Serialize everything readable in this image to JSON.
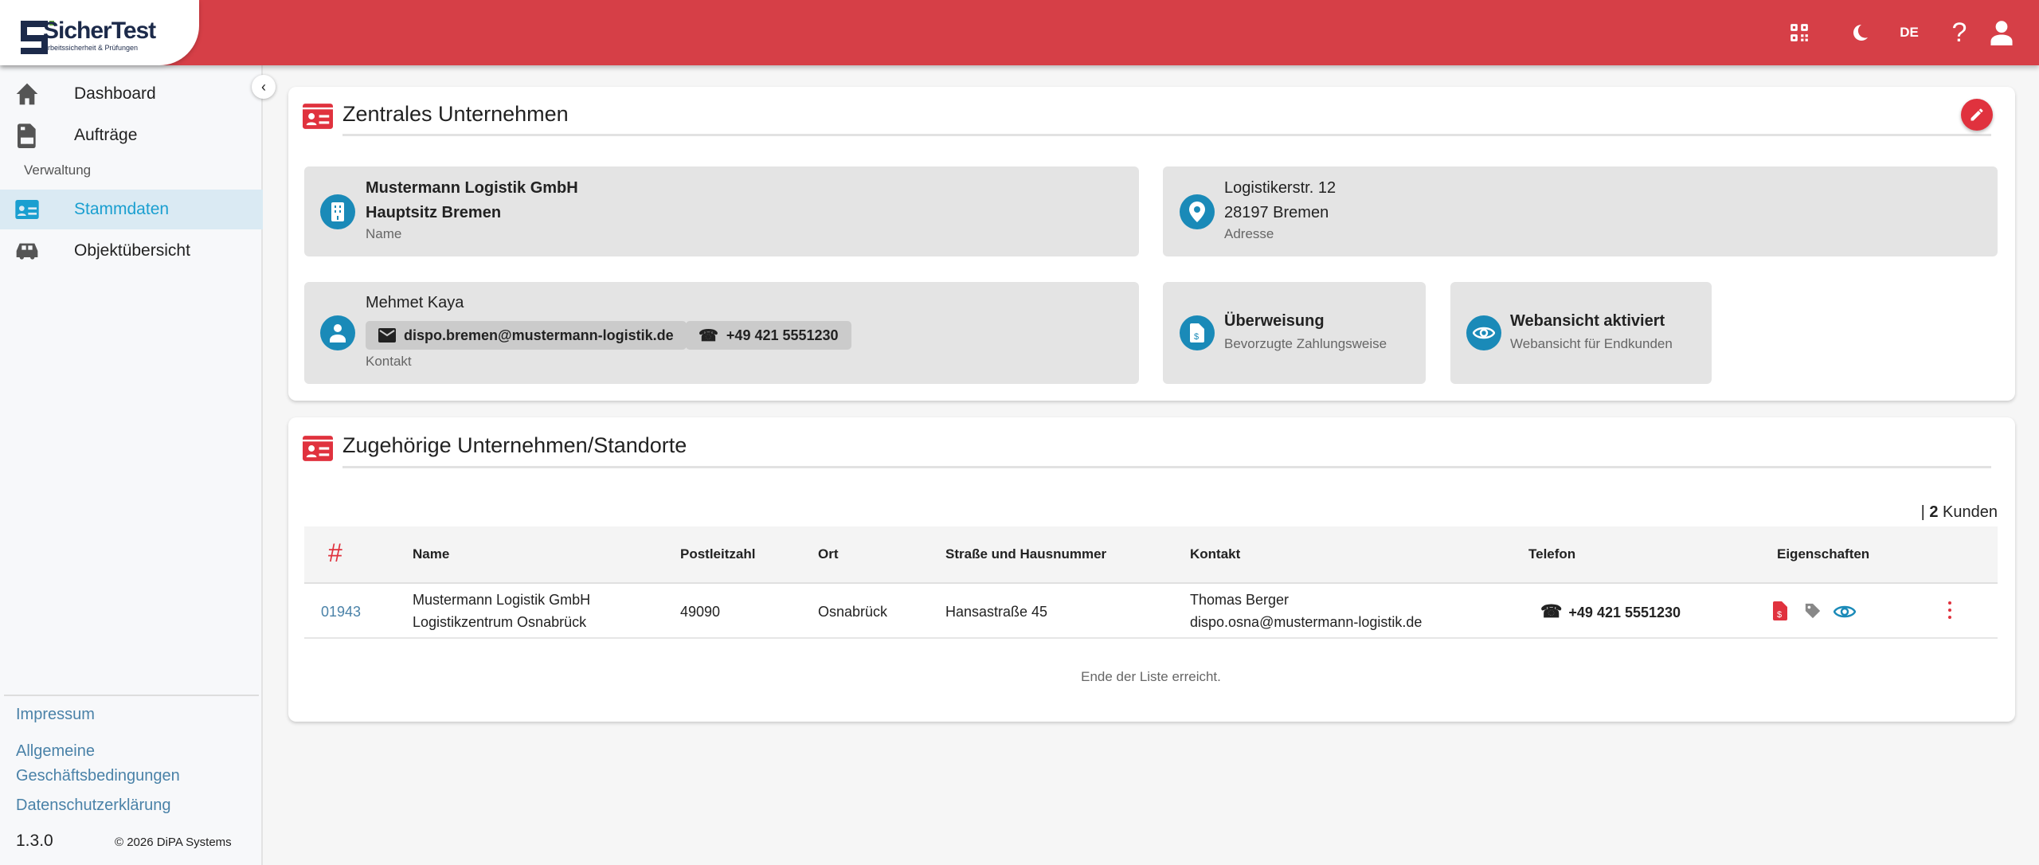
{
  "brand": {
    "name": "SicherTest",
    "tagline": "Arbeitssicherheit & Prüfungen"
  },
  "header": {
    "language": "DE",
    "icons": [
      "qr-code-icon",
      "moon-icon",
      "help-icon",
      "user-icon"
    ]
  },
  "sidebar": {
    "items": [
      {
        "label": "Dashboard",
        "icon": "home-icon"
      },
      {
        "label": "Aufträge",
        "icon": "document-icon"
      }
    ],
    "section": "Verwaltung",
    "admin_items": [
      {
        "label": "Stammdaten",
        "icon": "id-card-icon",
        "active": true
      },
      {
        "label": "Objektübersicht",
        "icon": "car-icon"
      }
    ],
    "footer_links": [
      "Impressum",
      "Allgemeine Geschäftsbedingungen",
      "Datenschutzerklärung"
    ],
    "version": "1.3.0",
    "copyright": "© 2026  DiPA Systems"
  },
  "colors": {
    "header": "#d63f47",
    "accent": "#1a8ab8",
    "link": "#4a82a8"
  },
  "company": {
    "title": "Zentrales Unternehmen",
    "name_line1": "Mustermann Logistik GmbH",
    "name_line2": "Hauptsitz Bremen",
    "name_label": "Name",
    "street": "Logistikerstr. 12",
    "city": "28197 Bremen",
    "address_label": "Adresse",
    "contact_name": "Mehmet Kaya",
    "contact_email": "dispo.bremen@mustermann-logistik.de",
    "contact_phone": "+49 421 5551230",
    "contact_label": "Kontakt",
    "payment": "Überweisung",
    "payment_label": "Bevorzugte Zahlungsweise",
    "webview": "Webansicht aktiviert",
    "webview_label": "Webansicht für Endkunden"
  },
  "related": {
    "title": "Zugehörige Unternehmen/Standorte",
    "count_prefix": "| ",
    "count": "2",
    "count_suffix": " Kunden",
    "columns": [
      "#",
      "Name",
      "Postleitzahl",
      "Ort",
      "Straße und Hausnummer",
      "Kontakt",
      "Telefon",
      "Eigenschaften"
    ],
    "rows": [
      {
        "id": "01943",
        "name1": "Mustermann Logistik GmbH",
        "name2": "Logistikzentrum Osnabrück",
        "zip": "49090",
        "city": "Osnabrück",
        "street": "Hansastraße 45",
        "contact_name": "Thomas Berger",
        "contact_email": "dispo.osna@mustermann-logistik.de",
        "phone": "+49 421 5551230",
        "properties": [
          "invoice-icon",
          "tag-icon",
          "eye-icon"
        ]
      }
    ],
    "end_text": "Ende der Liste erreicht."
  }
}
